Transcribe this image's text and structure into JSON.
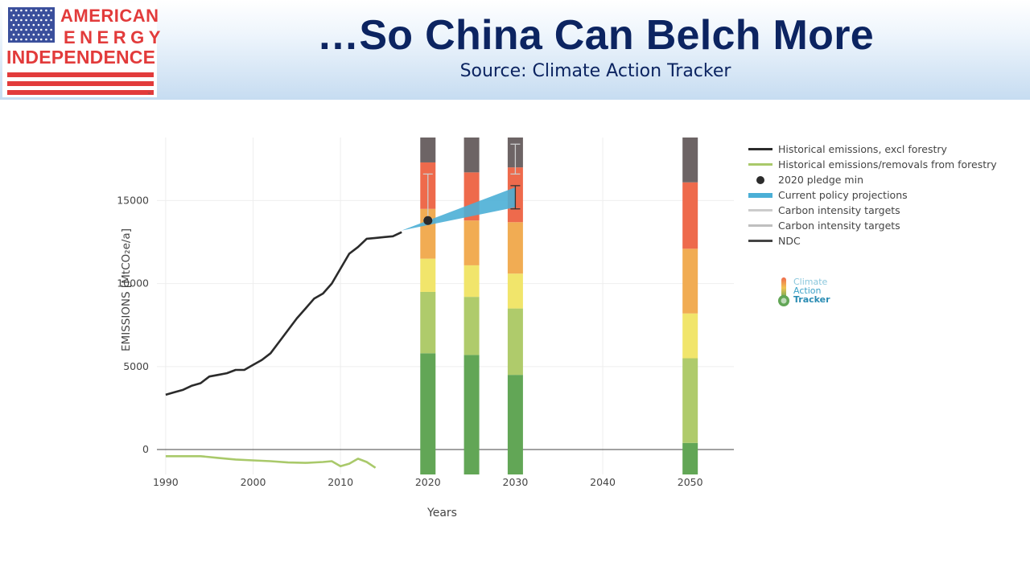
{
  "header": {
    "logo_line1": "AMERICAN",
    "logo_line2": "ENERGY",
    "logo_line3": "INDEPENDENCE",
    "logo_tm": "™",
    "title": "…So China Can Belch More",
    "subtitle": "Source: Climate Action Tracker"
  },
  "watermark": {
    "line1": "Climate",
    "line2": "Action",
    "line3": "Tracker"
  },
  "legend": {
    "items": [
      {
        "label": "Historical emissions, excl forestry",
        "kind": "line",
        "color": "#2b2b2b"
      },
      {
        "label": "Historical emissions/removals from forestry",
        "kind": "line",
        "color": "#a9c96a"
      },
      {
        "label": "2020 pledge min",
        "kind": "dot",
        "color": "#2b2b2b"
      },
      {
        "label": "Current policy projections",
        "kind": "band",
        "color": "#4bafd6"
      },
      {
        "label": "Carbon intensity targets",
        "kind": "line",
        "color": "#cccccc"
      },
      {
        "label": "Carbon intensity targets",
        "kind": "line",
        "color": "#bfbfbf"
      },
      {
        "label": "NDC",
        "kind": "line",
        "color": "#444444"
      }
    ]
  },
  "chart_data": {
    "type": "line",
    "xlabel": "Years",
    "ylabel": "EMISSIONS [MtCO₂e/a]",
    "xlim": [
      1989,
      2055
    ],
    "ylim": [
      -1500,
      18800
    ],
    "x_ticks": [
      1990,
      2000,
      2010,
      2020,
      2030,
      2040,
      2050
    ],
    "y_ticks": [
      0,
      5000,
      10000,
      15000
    ],
    "grid": true,
    "legend_position": "right",
    "series": [
      {
        "name": "Historical emissions, excl forestry",
        "color": "#2b2b2b",
        "x": [
          1990,
          1991,
          1992,
          1993,
          1994,
          1995,
          1996,
          1997,
          1998,
          1999,
          2000,
          2001,
          2002,
          2003,
          2004,
          2005,
          2006,
          2007,
          2008,
          2009,
          2010,
          2011,
          2012,
          2013,
          2014,
          2015,
          2016,
          2017
        ],
        "y": [
          3300,
          3450,
          3600,
          3850,
          4000,
          4400,
          4500,
          4600,
          4800,
          4800,
          5100,
          5400,
          5800,
          6500,
          7200,
          7900,
          8500,
          9100,
          9400,
          10000,
          10900,
          11800,
          12200,
          12700,
          12750,
          12800,
          12850,
          13100
        ]
      },
      {
        "name": "Historical emissions/removals from forestry",
        "color": "#a9c96a",
        "x": [
          1990,
          1992,
          1994,
          1996,
          1998,
          2000,
          2002,
          2004,
          2006,
          2008,
          2009,
          2010,
          2011,
          2012,
          2013,
          2014
        ],
        "y": [
          -400,
          -400,
          -400,
          -500,
          -600,
          -650,
          -700,
          -780,
          -800,
          -750,
          -700,
          -1000,
          -850,
          -550,
          -750,
          -1100
        ]
      }
    ],
    "pledge_point": {
      "name": "2020 pledge min",
      "x": 2020,
      "y": 13800,
      "color": "#2b2b2b"
    },
    "policy_band": {
      "name": "Current policy projections",
      "color": "#4bafd6",
      "x": [
        2017,
        2030
      ],
      "lower": [
        13200,
        14600
      ],
      "upper": [
        13200,
        15800
      ]
    },
    "error_bars": [
      {
        "x": 2020,
        "low": 13900,
        "high": 16600,
        "color": "#cccccc"
      },
      {
        "x": 2030,
        "low": 16600,
        "high": 18400,
        "color": "#cccccc"
      },
      {
        "x": 2030,
        "low": 14500,
        "high": 15900,
        "color": "#333333"
      }
    ],
    "rating_bars": {
      "colors": [
        "#62a656",
        "#afcb6b",
        "#f1e56b",
        "#f1ac53",
        "#ee6a4c",
        "#6d6465"
      ],
      "columns": [
        {
          "x": 2020,
          "bottom": -1500,
          "top": 18800,
          "boundaries": [
            5800,
            9500,
            11500,
            14500,
            17300
          ]
        },
        {
          "x": 2025,
          "bottom": -1500,
          "top": 18800,
          "boundaries": [
            5700,
            9200,
            11100,
            13800,
            16700
          ]
        },
        {
          "x": 2030,
          "bottom": -1500,
          "top": 18800,
          "boundaries": [
            4500,
            8500,
            10600,
            13700,
            17000
          ]
        },
        {
          "x": 2050,
          "bottom": -1500,
          "top": 18800,
          "boundaries": [
            400,
            5500,
            8200,
            12100,
            16100
          ]
        }
      ]
    }
  }
}
